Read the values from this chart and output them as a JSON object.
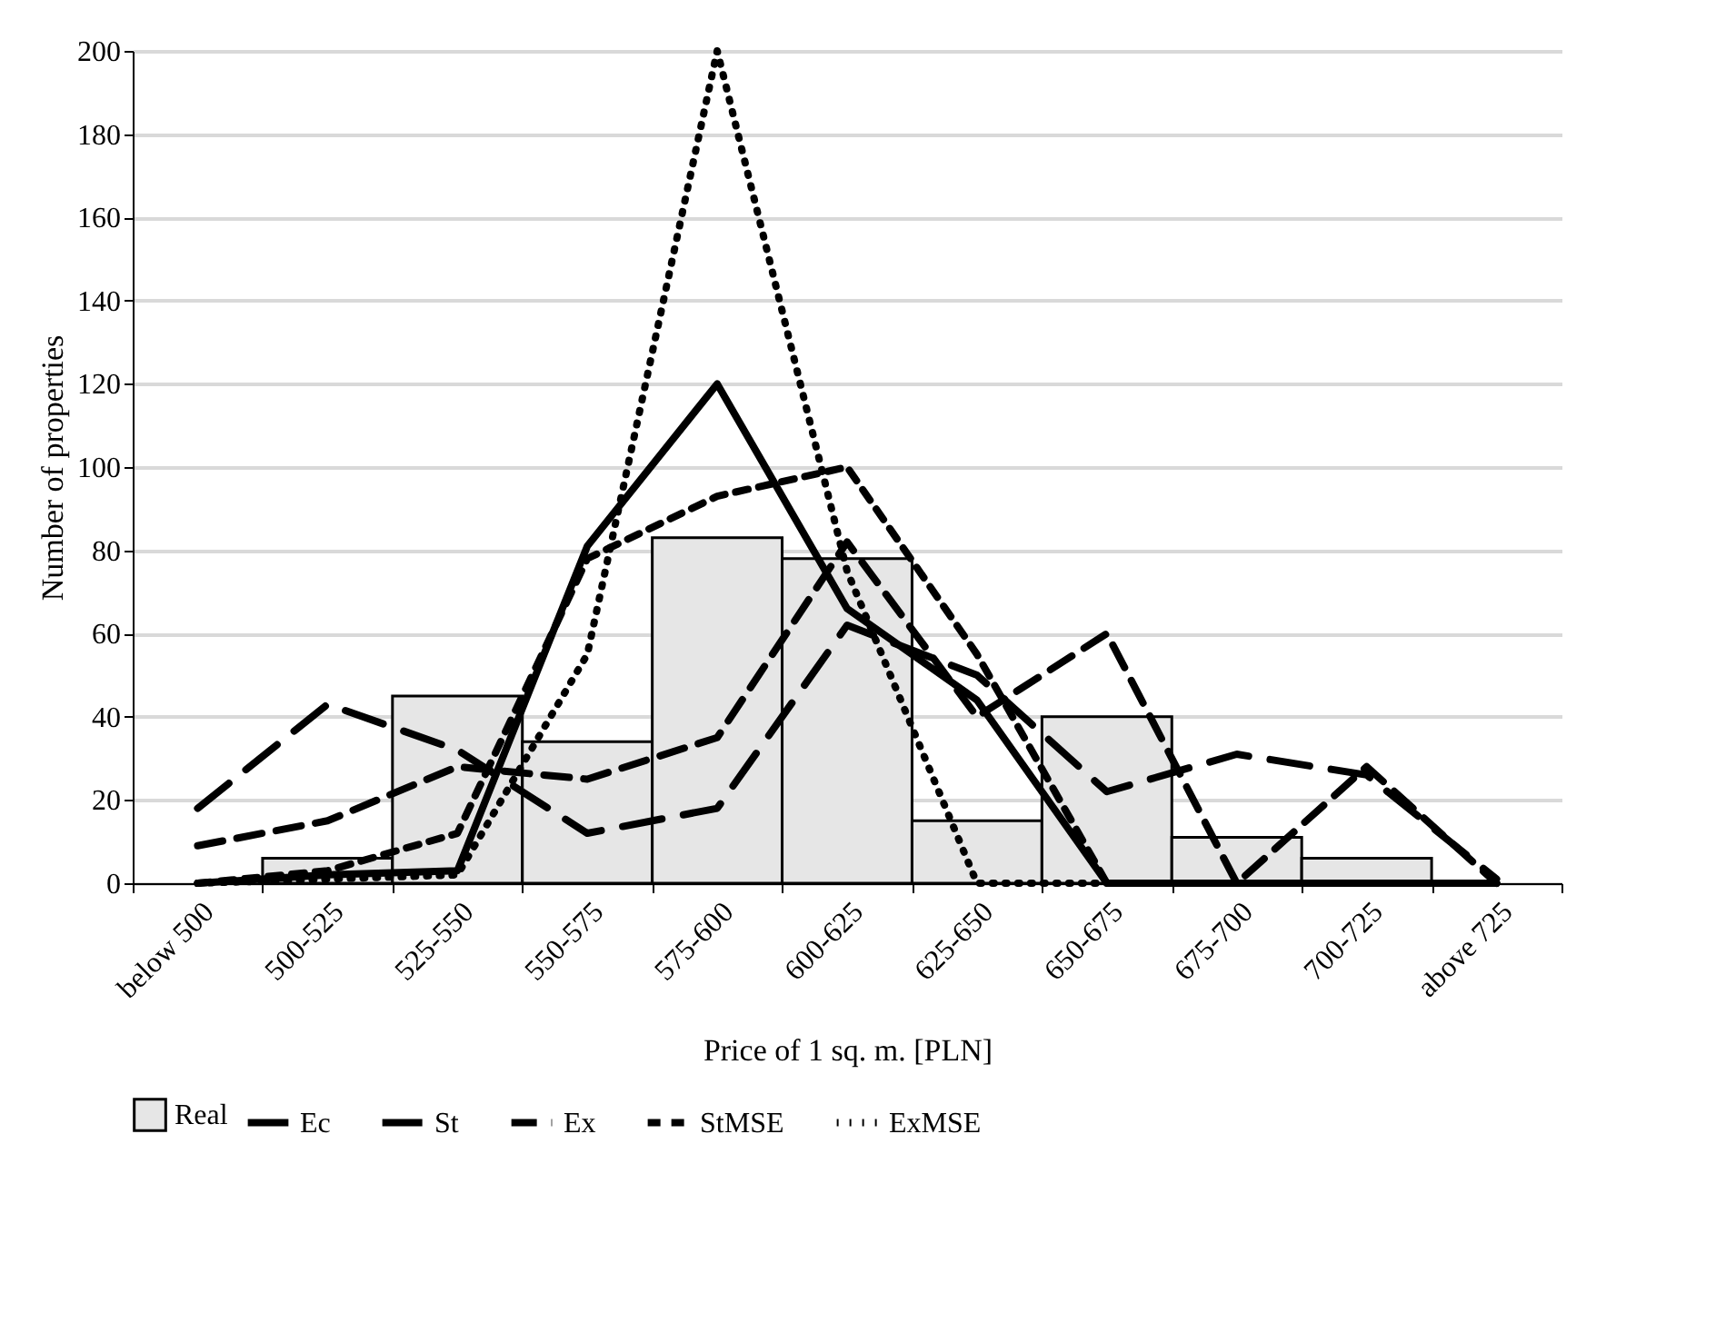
{
  "chart_data": {
    "type": "bar",
    "xlabel": "Price of 1 sq. m. [PLN]",
    "ylabel": "Number of properties",
    "categories": [
      "below 500",
      "500-525",
      "525-550",
      "550-575",
      "575-600",
      "600-625",
      "625-650",
      "650-675",
      "675-700",
      "700-725",
      "above 725"
    ],
    "series": [
      {
        "name": "Real",
        "color": "#e6e6e6",
        "values": [
          0,
          6,
          45,
          34,
          83,
          78,
          15,
          40,
          11,
          6,
          0
        ]
      },
      {
        "name": "Ec",
        "type": "line",
        "color": "#000000",
        "line_style": "solid",
        "values": [
          0,
          2,
          3,
          81,
          120,
          66,
          44,
          0,
          0,
          0,
          0
        ]
      },
      {
        "name": "St",
        "type": "line",
        "color": "#000000",
        "line_style": "dashed",
        "values": [
          18,
          43,
          32,
          12,
          18,
          62,
          50,
          22,
          31,
          26,
          1
        ]
      },
      {
        "name": "Ex",
        "type": "line",
        "color": "#000000",
        "line_style": "dashed",
        "values": [
          9,
          15,
          28,
          25,
          35,
          82,
          40,
          60,
          0,
          28,
          0
        ]
      },
      {
        "name": "StMSE",
        "type": "line",
        "color": "#000000",
        "line_style": "dashed",
        "values": [
          0,
          3,
          12,
          78,
          93,
          100,
          55,
          0,
          0,
          0,
          0
        ]
      },
      {
        "name": "ExMSE",
        "type": "line",
        "color": "#000000",
        "line_style": "dotted",
        "values": [
          0,
          1,
          2,
          55,
          200,
          75,
          0,
          0,
          0,
          0,
          0
        ]
      }
    ],
    "ylim": [
      0,
      200
    ],
    "yticks": [
      0,
      20,
      40,
      60,
      80,
      100,
      120,
      140,
      160,
      180,
      200
    ],
    "grid": "y",
    "legend": "bottom"
  }
}
